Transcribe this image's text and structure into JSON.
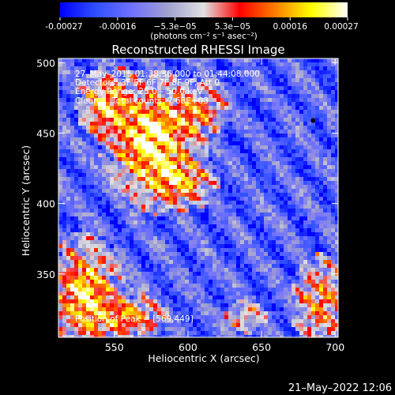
{
  "chart_data": {
    "type": "heatmap",
    "title": "Reconstructed RHESSI Image",
    "xlabel": "Heliocentric X (arcsec)",
    "ylabel": "Heliocentric Y (arcsec)",
    "xlim": [
      512,
      702
    ],
    "ylim": [
      305,
      503
    ],
    "x_ticks": [
      550,
      600,
      650,
      700
    ],
    "y_ticks": [
      350,
      400,
      450,
      500
    ],
    "colormap": [
      "#0000ff",
      "#3050ff",
      "#7070ff",
      "#a0a0d0",
      "#e0e0e0",
      "#ff0000",
      "#ff8000",
      "#ffff00",
      "#ffffff"
    ],
    "colorbar": {
      "range": [
        -0.00027,
        0.00027
      ],
      "ticks": [
        "-0.00027",
        "-0.00016",
        "−5.3e−05",
        "5.3e−05",
        "0.00016",
        "0.00027"
      ],
      "label": "(photons cm⁻² s⁻¹ asec⁻²)"
    },
    "annotations": {
      "time_range": "27–May–2015 01:38:36.000 to 01:44:08.000",
      "detectors": "Detectors: 3F 5F 6F 7F 8F 9F, Att 0",
      "energy": "Energy Range: 25.0 – 50.0 keV",
      "method": "Clean",
      "counts": "Total counts: 7.68E+03",
      "peak": "Position of Peak = [569,449]"
    },
    "peak_position": [
      569,
      449
    ],
    "marker": [
      685,
      459
    ],
    "emission_sources": [
      {
        "x": 575,
        "y": 445,
        "sx": 22,
        "sy": 32,
        "amp": 1.0
      },
      {
        "x": 545,
        "y": 470,
        "sx": 14,
        "sy": 18,
        "amp": 0.75
      },
      {
        "x": 595,
        "y": 415,
        "sx": 18,
        "sy": 14,
        "amp": 0.65
      },
      {
        "x": 605,
        "y": 465,
        "sx": 16,
        "sy": 15,
        "amp": 0.55
      },
      {
        "x": 530,
        "y": 335,
        "sx": 18,
        "sy": 30,
        "amp": 0.85
      },
      {
        "x": 560,
        "y": 320,
        "sx": 20,
        "sy": 12,
        "amp": 0.6
      },
      {
        "x": 690,
        "y": 330,
        "sx": 15,
        "sy": 25,
        "amp": 0.55
      },
      {
        "x": 640,
        "y": 320,
        "sx": 12,
        "sy": 10,
        "amp": 0.35
      }
    ]
  },
  "footer": {
    "timestamp": "21–May–2022 12:06"
  }
}
